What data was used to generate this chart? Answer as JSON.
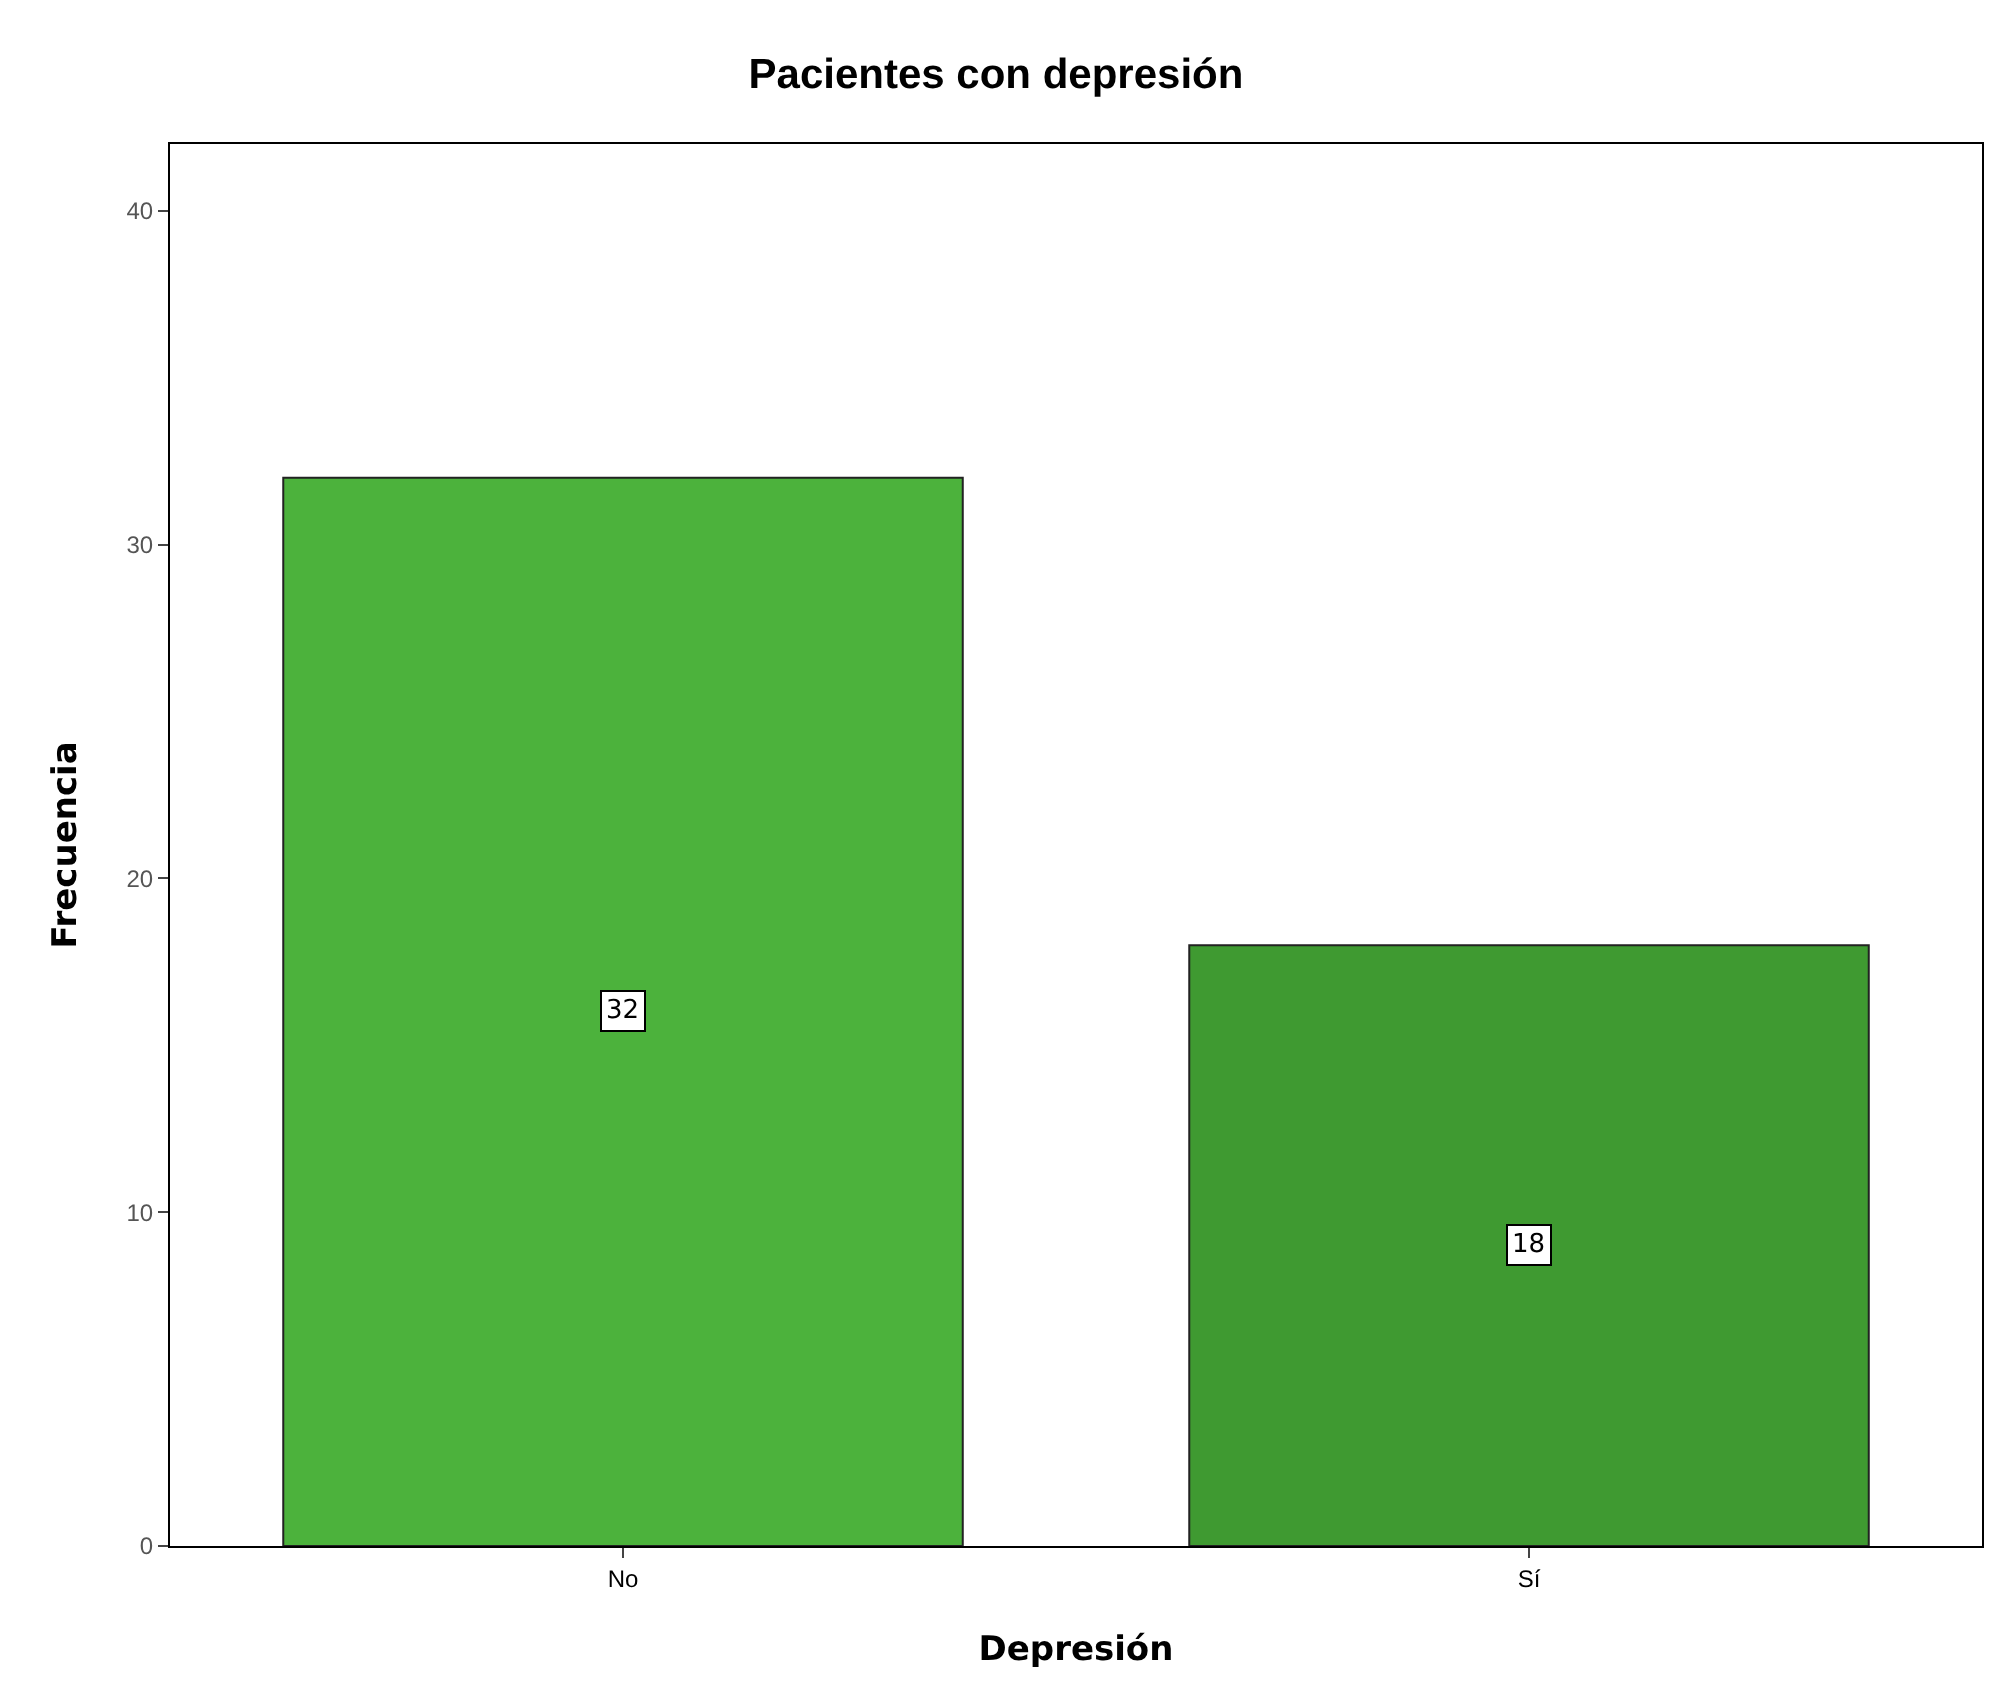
{
  "chart_data": {
    "type": "bar",
    "title": "Pacientes con depresión",
    "xlabel": "Depresión",
    "ylabel": "Frecuencia",
    "categories": [
      "No",
      "Sí"
    ],
    "values": [
      32,
      18
    ],
    "colors": [
      "#4cb23c",
      "#3f9a31"
    ],
    "ylim": [
      0,
      42
    ],
    "yticks": [
      0,
      10,
      20,
      30,
      40
    ],
    "grid": false,
    "data_labels": true
  }
}
